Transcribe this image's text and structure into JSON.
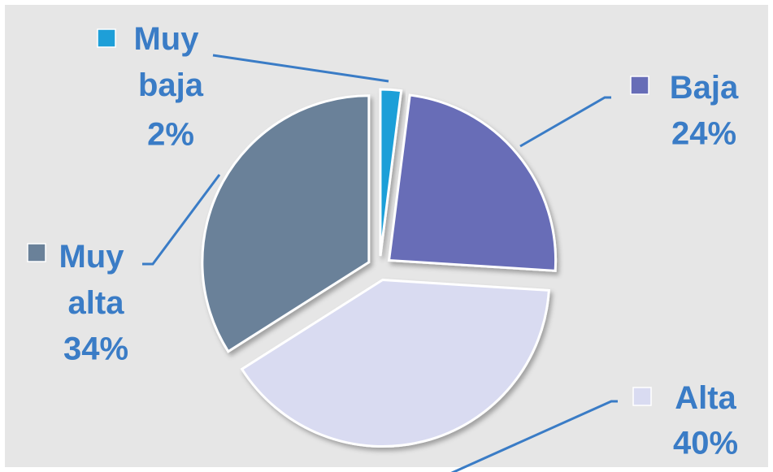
{
  "chart_data": {
    "type": "pie",
    "categories": [
      "Muy baja",
      "Baja",
      "Alta",
      "Muy alta"
    ],
    "values": [
      2,
      24,
      40,
      34
    ],
    "value_labels": [
      "2%",
      "24%",
      "40%",
      "34%"
    ],
    "colors": [
      "#1e9fd8",
      "#676db7",
      "#d9dbf1",
      "#6a8199"
    ]
  }
}
